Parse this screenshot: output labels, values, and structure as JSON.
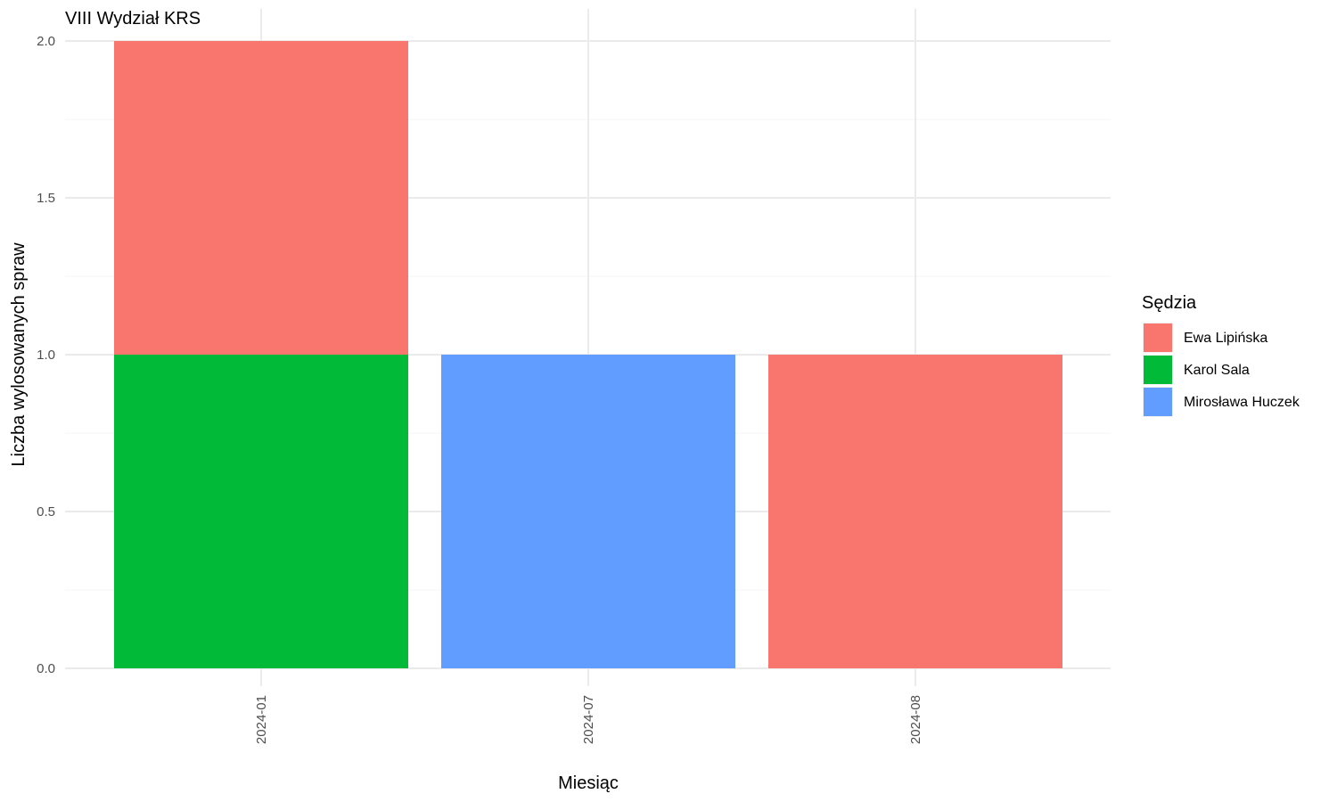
{
  "chart_data": {
    "type": "bar",
    "stacked": true,
    "title": "VIII Wydział KRS",
    "xlabel": "Miesiąc",
    "ylabel": "Liczba wylosowanych spraw",
    "categories": [
      "2024-01",
      "2024-07",
      "2024-08"
    ],
    "ylim": [
      0,
      2
    ],
    "yticks": [
      "0.0",
      "0.5",
      "1.0",
      "1.5",
      "2.0"
    ],
    "ytick_values": [
      0,
      0.5,
      1,
      1.5,
      2
    ],
    "grid": true,
    "legend": {
      "title": "Sędzia",
      "position": "right"
    },
    "series": [
      {
        "name": "Ewa Lipińska",
        "color": "#F8766D",
        "values": [
          1,
          0,
          1
        ]
      },
      {
        "name": "Karol Sala",
        "color": "#00BA38",
        "values": [
          1,
          0,
          0
        ]
      },
      {
        "name": "Mirosława Huczek",
        "color": "#619CFF",
        "values": [
          0,
          1,
          0
        ]
      }
    ],
    "stack_order": [
      "Karol Sala",
      "Mirosława Huczek",
      "Ewa Lipińska"
    ]
  }
}
